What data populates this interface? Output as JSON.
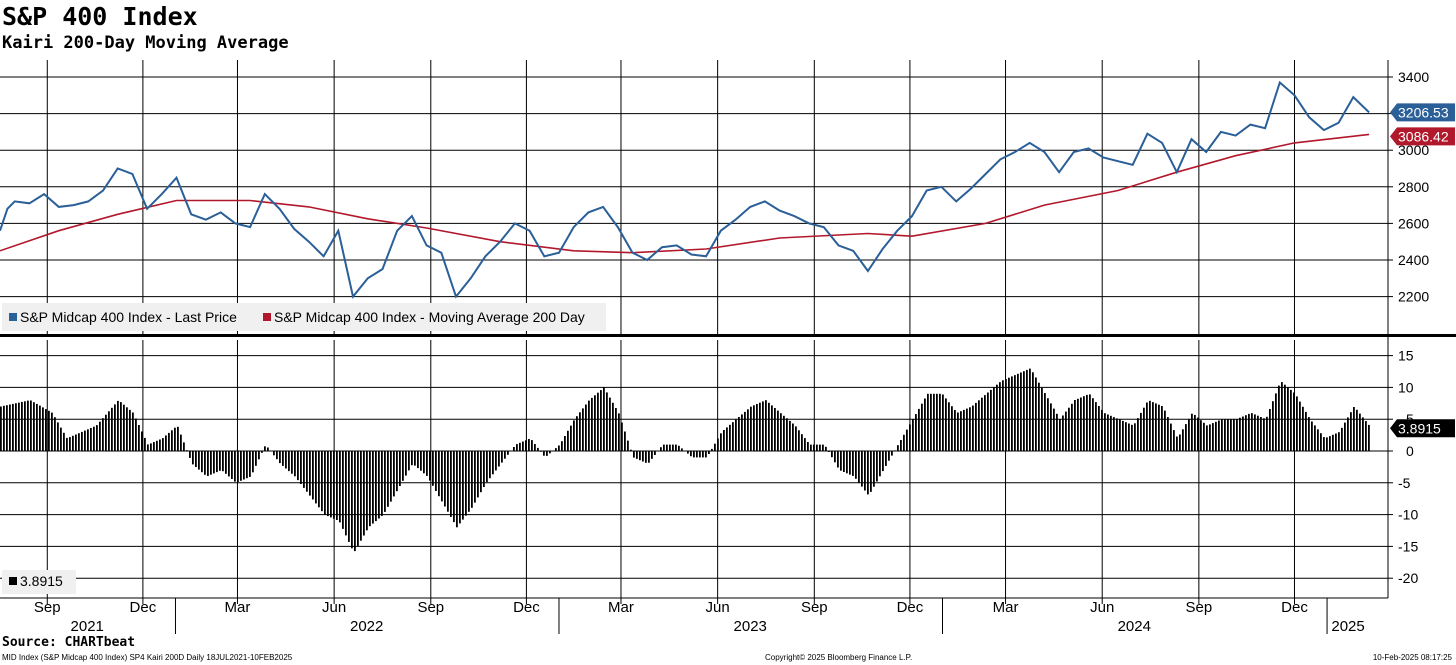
{
  "title": "S&P 400 Index",
  "subtitle": "Kairi 200-Day Moving Average",
  "source": "Source: CHARTbeat",
  "footer": {
    "left": "MID Index (S&P Midcap 400 Index) SP4 Kairi 200D  Daily 18JUL2021-10FEB2025",
    "center": "Copyright© 2025 Bloomberg Finance L.P.",
    "right": "10-Feb-2025 08:17:25"
  },
  "colors": {
    "price": "#2a5f98",
    "ma": "#b2182b",
    "bars": "#000000",
    "grid": "#000000"
  },
  "chart_data": [
    {
      "type": "line",
      "panel": "top",
      "x_range": [
        "2021-07-18",
        "2025-02-10"
      ],
      "ylim": [
        2000,
        3450
      ],
      "yticks": [
        2200,
        2400,
        2600,
        2800,
        3000,
        3200,
        3400
      ],
      "grid": true,
      "legend_position": "bottom-left",
      "series": [
        {
          "name": "S&P Midcap 400 Index - Last Price",
          "last_value_label": "3206.53",
          "points": [
            [
              "2021-07-18",
              2560
            ],
            [
              "2021-07-25",
              2680
            ],
            [
              "2021-08-01",
              2720
            ],
            [
              "2021-08-15",
              2710
            ],
            [
              "2021-08-29",
              2760
            ],
            [
              "2021-09-12",
              2690
            ],
            [
              "2021-09-26",
              2700
            ],
            [
              "2021-10-10",
              2720
            ],
            [
              "2021-10-24",
              2780
            ],
            [
              "2021-11-07",
              2900
            ],
            [
              "2021-11-21",
              2870
            ],
            [
              "2021-12-05",
              2680
            ],
            [
              "2021-12-19",
              2760
            ],
            [
              "2022-01-02",
              2850
            ],
            [
              "2022-01-16",
              2650
            ],
            [
              "2022-01-30",
              2620
            ],
            [
              "2022-02-13",
              2660
            ],
            [
              "2022-02-27",
              2600
            ],
            [
              "2022-03-13",
              2580
            ],
            [
              "2022-03-27",
              2760
            ],
            [
              "2022-04-10",
              2680
            ],
            [
              "2022-04-24",
              2570
            ],
            [
              "2022-05-08",
              2500
            ],
            [
              "2022-05-22",
              2420
            ],
            [
              "2022-06-05",
              2560
            ],
            [
              "2022-06-19",
              2200
            ],
            [
              "2022-07-03",
              2300
            ],
            [
              "2022-07-17",
              2350
            ],
            [
              "2022-07-31",
              2560
            ],
            [
              "2022-08-14",
              2640
            ],
            [
              "2022-08-28",
              2480
            ],
            [
              "2022-09-11",
              2440
            ],
            [
              "2022-09-25",
              2200
            ],
            [
              "2022-10-09",
              2300
            ],
            [
              "2022-10-23",
              2420
            ],
            [
              "2022-11-06",
              2500
            ],
            [
              "2022-11-20",
              2600
            ],
            [
              "2022-12-04",
              2560
            ],
            [
              "2022-12-18",
              2420
            ],
            [
              "2023-01-01",
              2440
            ],
            [
              "2023-01-15",
              2580
            ],
            [
              "2023-01-29",
              2660
            ],
            [
              "2023-02-12",
              2690
            ],
            [
              "2023-02-26",
              2580
            ],
            [
              "2023-03-12",
              2440
            ],
            [
              "2023-03-26",
              2400
            ],
            [
              "2023-04-09",
              2470
            ],
            [
              "2023-04-23",
              2480
            ],
            [
              "2023-05-07",
              2430
            ],
            [
              "2023-05-21",
              2420
            ],
            [
              "2023-06-04",
              2560
            ],
            [
              "2023-06-18",
              2620
            ],
            [
              "2023-07-02",
              2690
            ],
            [
              "2023-07-16",
              2720
            ],
            [
              "2023-07-30",
              2670
            ],
            [
              "2023-08-13",
              2640
            ],
            [
              "2023-08-27",
              2600
            ],
            [
              "2023-09-10",
              2580
            ],
            [
              "2023-09-24",
              2480
            ],
            [
              "2023-10-08",
              2450
            ],
            [
              "2023-10-22",
              2340
            ],
            [
              "2023-11-05",
              2460
            ],
            [
              "2023-11-19",
              2560
            ],
            [
              "2023-12-03",
              2640
            ],
            [
              "2023-12-17",
              2780
            ],
            [
              "2023-12-31",
              2800
            ],
            [
              "2024-01-14",
              2720
            ],
            [
              "2024-01-28",
              2790
            ],
            [
              "2024-02-11",
              2870
            ],
            [
              "2024-02-25",
              2950
            ],
            [
              "2024-03-10",
              2990
            ],
            [
              "2024-03-24",
              3040
            ],
            [
              "2024-04-07",
              2990
            ],
            [
              "2024-04-21",
              2880
            ],
            [
              "2024-05-05",
              2990
            ],
            [
              "2024-05-19",
              3010
            ],
            [
              "2024-06-02",
              2960
            ],
            [
              "2024-06-16",
              2940
            ],
            [
              "2024-06-30",
              2920
            ],
            [
              "2024-07-14",
              3090
            ],
            [
              "2024-07-28",
              3040
            ],
            [
              "2024-08-11",
              2880
            ],
            [
              "2024-08-25",
              3060
            ],
            [
              "2024-09-08",
              2990
            ],
            [
              "2024-09-22",
              3100
            ],
            [
              "2024-10-06",
              3080
            ],
            [
              "2024-10-20",
              3140
            ],
            [
              "2024-11-03",
              3120
            ],
            [
              "2024-11-17",
              3370
            ],
            [
              "2024-12-01",
              3300
            ],
            [
              "2024-12-15",
              3180
            ],
            [
              "2024-12-29",
              3110
            ],
            [
              "2025-01-12",
              3150
            ],
            [
              "2025-01-26",
              3290
            ],
            [
              "2025-02-10",
              3206.53
            ]
          ]
        },
        {
          "name": "S&P Midcap 400 Index - Moving Average 200 Day",
          "last_value_label": "3086.42",
          "points": [
            [
              "2021-07-18",
              2450
            ],
            [
              "2021-09-12",
              2560
            ],
            [
              "2021-11-07",
              2650
            ],
            [
              "2022-01-02",
              2725
            ],
            [
              "2022-03-13",
              2725
            ],
            [
              "2022-05-08",
              2690
            ],
            [
              "2022-07-03",
              2625
            ],
            [
              "2022-08-28",
              2575
            ],
            [
              "2022-11-06",
              2500
            ],
            [
              "2023-01-15",
              2450
            ],
            [
              "2023-03-12",
              2440
            ],
            [
              "2023-05-21",
              2460
            ],
            [
              "2023-07-30",
              2520
            ],
            [
              "2023-10-22",
              2545
            ],
            [
              "2023-12-03",
              2530
            ],
            [
              "2024-02-11",
              2600
            ],
            [
              "2024-04-07",
              2700
            ],
            [
              "2024-06-16",
              2780
            ],
            [
              "2024-08-11",
              2880
            ],
            [
              "2024-10-06",
              2970
            ],
            [
              "2024-12-01",
              3040
            ],
            [
              "2025-02-10",
              3086.42
            ]
          ]
        }
      ]
    },
    {
      "type": "bar",
      "panel": "bottom",
      "x_range": [
        "2021-07-18",
        "2025-02-10"
      ],
      "ylim": [
        -22,
        17
      ],
      "yticks": [
        15,
        10,
        5,
        0,
        -5,
        -10,
        -15,
        -20
      ],
      "grid": true,
      "legend_position": "bottom-left",
      "series": [
        {
          "name": "",
          "legend_label": "3.8915",
          "last_value_label": "3.8915",
          "points": [
            [
              "2021-07-18",
              7
            ],
            [
              "2021-08-15",
              8
            ],
            [
              "2021-09-05",
              6
            ],
            [
              "2021-09-19",
              2
            ],
            [
              "2021-10-03",
              3
            ],
            [
              "2021-10-17",
              4
            ],
            [
              "2021-11-07",
              8
            ],
            [
              "2021-11-21",
              6
            ],
            [
              "2021-12-05",
              1
            ],
            [
              "2021-12-19",
              2
            ],
            [
              "2022-01-02",
              4
            ],
            [
              "2022-01-16",
              -2
            ],
            [
              "2022-01-30",
              -4
            ],
            [
              "2022-02-13",
              -3
            ],
            [
              "2022-02-27",
              -5
            ],
            [
              "2022-03-13",
              -4
            ],
            [
              "2022-03-27",
              1
            ],
            [
              "2022-04-10",
              -2
            ],
            [
              "2022-04-24",
              -4
            ],
            [
              "2022-05-08",
              -7
            ],
            [
              "2022-05-22",
              -10
            ],
            [
              "2022-06-05",
              -11
            ],
            [
              "2022-06-19",
              -16
            ],
            [
              "2022-07-03",
              -12
            ],
            [
              "2022-07-17",
              -10
            ],
            [
              "2022-07-31",
              -6
            ],
            [
              "2022-08-14",
              -2
            ],
            [
              "2022-08-28",
              -4
            ],
            [
              "2022-09-11",
              -8
            ],
            [
              "2022-09-25",
              -12
            ],
            [
              "2022-10-09",
              -9
            ],
            [
              "2022-10-23",
              -5
            ],
            [
              "2022-11-06",
              -2
            ],
            [
              "2022-11-20",
              1
            ],
            [
              "2022-12-04",
              2
            ],
            [
              "2022-12-18",
              -1
            ],
            [
              "2023-01-01",
              1
            ],
            [
              "2023-01-15",
              5
            ],
            [
              "2023-01-29",
              8
            ],
            [
              "2023-02-12",
              10
            ],
            [
              "2023-02-26",
              6
            ],
            [
              "2023-03-12",
              -1
            ],
            [
              "2023-03-26",
              -2
            ],
            [
              "2023-04-09",
              1
            ],
            [
              "2023-04-23",
              1
            ],
            [
              "2023-05-07",
              -1
            ],
            [
              "2023-05-21",
              -1
            ],
            [
              "2023-06-04",
              3
            ],
            [
              "2023-06-18",
              5
            ],
            [
              "2023-07-02",
              7
            ],
            [
              "2023-07-16",
              8
            ],
            [
              "2023-07-30",
              6
            ],
            [
              "2023-08-13",
              4
            ],
            [
              "2023-08-27",
              1
            ],
            [
              "2023-09-10",
              1
            ],
            [
              "2023-09-24",
              -3
            ],
            [
              "2023-10-08",
              -4
            ],
            [
              "2023-10-22",
              -7
            ],
            [
              "2023-11-05",
              -3
            ],
            [
              "2023-11-19",
              1
            ],
            [
              "2023-12-03",
              5
            ],
            [
              "2023-12-17",
              9
            ],
            [
              "2023-12-31",
              9
            ],
            [
              "2024-01-14",
              6
            ],
            [
              "2024-01-28",
              7
            ],
            [
              "2024-02-11",
              9
            ],
            [
              "2024-02-25",
              11
            ],
            [
              "2024-03-10",
              12
            ],
            [
              "2024-03-24",
              13
            ],
            [
              "2024-04-07",
              9
            ],
            [
              "2024-04-21",
              5
            ],
            [
              "2024-05-05",
              8
            ],
            [
              "2024-05-19",
              9
            ],
            [
              "2024-06-02",
              6
            ],
            [
              "2024-06-16",
              5
            ],
            [
              "2024-06-30",
              4
            ],
            [
              "2024-07-14",
              8
            ],
            [
              "2024-07-28",
              7
            ],
            [
              "2024-08-11",
              2
            ],
            [
              "2024-08-25",
              6
            ],
            [
              "2024-09-08",
              4
            ],
            [
              "2024-09-22",
              5
            ],
            [
              "2024-10-06",
              5
            ],
            [
              "2024-10-20",
              6
            ],
            [
              "2024-11-03",
              5
            ],
            [
              "2024-11-17",
              11
            ],
            [
              "2024-12-01",
              9
            ],
            [
              "2024-12-15",
              5
            ],
            [
              "2024-12-29",
              2
            ],
            [
              "2025-01-12",
              3
            ],
            [
              "2025-01-26",
              7
            ],
            [
              "2025-02-10",
              3.8915
            ]
          ]
        }
      ]
    }
  ],
  "x_axis": {
    "months": [
      {
        "label": "Sep",
        "date": "2021-09-01"
      },
      {
        "label": "Dec",
        "date": "2021-12-01"
      },
      {
        "label": "Mar",
        "date": "2022-03-01"
      },
      {
        "label": "Jun",
        "date": "2022-06-01"
      },
      {
        "label": "Sep",
        "date": "2022-09-01"
      },
      {
        "label": "Dec",
        "date": "2022-12-01"
      },
      {
        "label": "Mar",
        "date": "2023-03-01"
      },
      {
        "label": "Jun",
        "date": "2023-06-01"
      },
      {
        "label": "Sep",
        "date": "2023-09-01"
      },
      {
        "label": "Dec",
        "date": "2023-12-01"
      },
      {
        "label": "Mar",
        "date": "2024-03-01"
      },
      {
        "label": "Jun",
        "date": "2024-06-01"
      },
      {
        "label": "Sep",
        "date": "2024-09-01"
      },
      {
        "label": "Dec",
        "date": "2024-12-01"
      }
    ],
    "years": [
      {
        "label": "2021",
        "date": "2021-07-18",
        "end": "2021-12-31"
      },
      {
        "label": "2022",
        "date": "2022-01-01",
        "end": "2022-12-31"
      },
      {
        "label": "2023",
        "date": "2023-01-01",
        "end": "2023-12-31"
      },
      {
        "label": "2024",
        "date": "2024-01-01",
        "end": "2024-12-31"
      },
      {
        "label": "2025",
        "date": "2025-01-01",
        "end": "2025-02-10"
      }
    ]
  }
}
